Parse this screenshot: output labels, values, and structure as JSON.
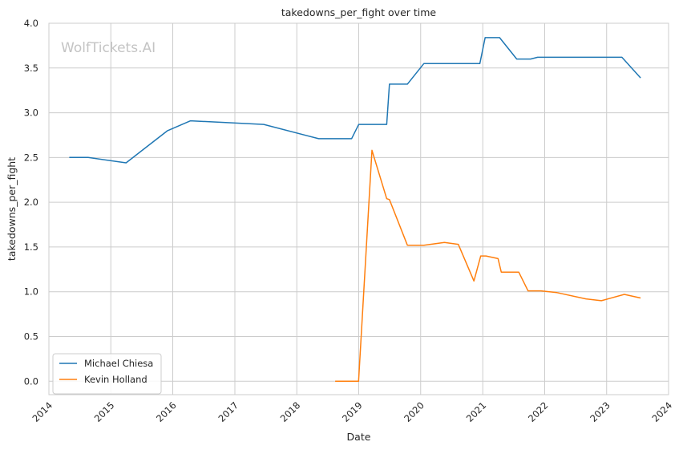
{
  "chart_data": {
    "type": "line",
    "title": "takedowns_per_fight over time",
    "xlabel": "Date",
    "ylabel": "takedowns_per_fight",
    "watermark": "WolfTickets.AI",
    "xlim": [
      "2014-01-01",
      "2024-01-01"
    ],
    "ylim": [
      -0.15,
      4.0
    ],
    "x_ticks": [
      "2014",
      "2015",
      "2016",
      "2017",
      "2018",
      "2019",
      "2020",
      "2021",
      "2022",
      "2023",
      "2024"
    ],
    "y_ticks": [
      "0.0",
      "0.5",
      "1.0",
      "1.5",
      "2.0",
      "2.5",
      "3.0",
      "3.5",
      "4.0"
    ],
    "grid": true,
    "legend_position": "lower-left",
    "series": [
      {
        "name": "Michael Chiesa",
        "color": "#1f77b4",
        "points": [
          [
            "2014-05-01",
            2.5
          ],
          [
            "2014-08-20",
            2.5
          ],
          [
            "2015-04-01",
            2.44
          ],
          [
            "2015-12-01",
            2.8
          ],
          [
            "2016-04-15",
            2.91
          ],
          [
            "2017-06-20",
            2.87
          ],
          [
            "2018-05-10",
            2.71
          ],
          [
            "2018-11-20",
            2.71
          ],
          [
            "2019-01-01",
            2.87
          ],
          [
            "2019-06-15",
            2.87
          ],
          [
            "2019-07-01",
            3.32
          ],
          [
            "2019-10-15",
            3.32
          ],
          [
            "2020-01-20",
            3.55
          ],
          [
            "2020-12-15",
            3.55
          ],
          [
            "2021-01-15",
            3.84
          ],
          [
            "2021-04-10",
            3.84
          ],
          [
            "2021-07-20",
            3.6
          ],
          [
            "2021-10-10",
            3.6
          ],
          [
            "2021-11-20",
            3.62
          ],
          [
            "2023-04-01",
            3.62
          ],
          [
            "2023-07-20",
            3.39
          ]
        ]
      },
      {
        "name": "Kevin Holland",
        "color": "#ff7f0e",
        "points": [
          [
            "2018-08-15",
            0.0
          ],
          [
            "2018-12-31",
            0.0
          ],
          [
            "2019-03-20",
            2.58
          ],
          [
            "2019-06-15",
            2.04
          ],
          [
            "2019-07-01",
            2.03
          ],
          [
            "2019-10-15",
            1.52
          ],
          [
            "2020-01-20",
            1.52
          ],
          [
            "2020-05-20",
            1.55
          ],
          [
            "2020-08-10",
            1.53
          ],
          [
            "2020-11-10",
            1.12
          ],
          [
            "2020-12-20",
            1.4
          ],
          [
            "2021-01-20",
            1.4
          ],
          [
            "2021-04-01",
            1.37
          ],
          [
            "2021-04-20",
            1.22
          ],
          [
            "2021-08-01",
            1.22
          ],
          [
            "2021-09-25",
            1.01
          ],
          [
            "2021-12-10",
            1.01
          ],
          [
            "2022-03-15",
            0.99
          ],
          [
            "2022-09-01",
            0.92
          ],
          [
            "2022-12-01",
            0.9
          ],
          [
            "2023-04-15",
            0.97
          ],
          [
            "2023-07-20",
            0.93
          ]
        ]
      }
    ]
  }
}
